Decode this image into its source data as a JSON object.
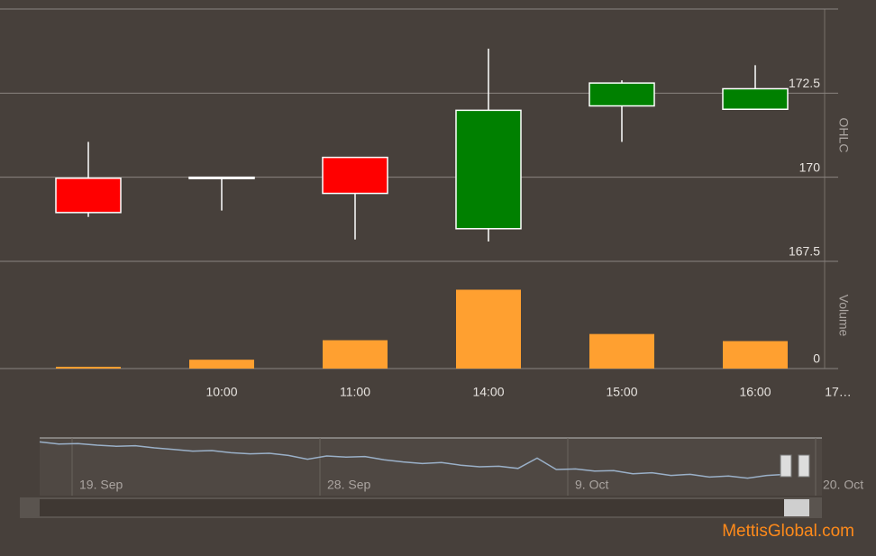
{
  "chart_data": {
    "type": "candlestick",
    "categories": [
      null,
      "10:00",
      "11:00",
      "14:00",
      "15:00",
      "16:00",
      "17…"
    ],
    "series": {
      "open": [
        169.97,
        170.0,
        170.59,
        168.47,
        172.12,
        172.02,
        null
      ],
      "high": [
        171.05,
        170.0,
        170.59,
        173.82,
        172.88,
        173.33,
        null
      ],
      "low": [
        168.82,
        169.01,
        168.15,
        168.09,
        171.05,
        172.02,
        null
      ],
      "close": [
        168.95,
        170.0,
        169.52,
        171.99,
        172.8,
        172.63,
        null
      ]
    },
    "up_color": "#008000",
    "down_color": "#ff0000",
    "flat_color": "#ffffff",
    "ylabel": "OHLC",
    "ylim": [
      167.5,
      175
    ],
    "yticks": [
      167.5,
      170,
      172.5
    ],
    "volume": {
      "ylabel": "Volume",
      "color": "#ffa030",
      "values": [
        2,
        10,
        32,
        89,
        39,
        31,
        null
      ],
      "ylim": [
        0,
        120
      ],
      "yticks": [
        0
      ]
    },
    "navigator": {
      "xticks": [
        "19. Sep",
        "28. Sep",
        "9. Oct",
        "20. Oct"
      ],
      "color": "#9ab0c8",
      "ylim": [
        166,
        176
      ],
      "values": [
        175.6,
        175.2,
        175.3,
        175.0,
        174.8,
        174.9,
        174.5,
        174.2,
        173.9,
        174.0,
        173.6,
        173.4,
        173.5,
        173.1,
        172.4,
        173.0,
        172.8,
        172.9,
        172.3,
        171.9,
        171.6,
        171.8,
        171.3,
        171.0,
        171.1,
        170.7,
        172.6,
        170.5,
        170.6,
        170.2,
        170.3,
        169.7,
        169.9,
        169.4,
        169.6,
        169.1,
        169.3,
        168.9,
        169.4,
        169.6
      ]
    },
    "watermark": "MettisGlobal.com"
  }
}
